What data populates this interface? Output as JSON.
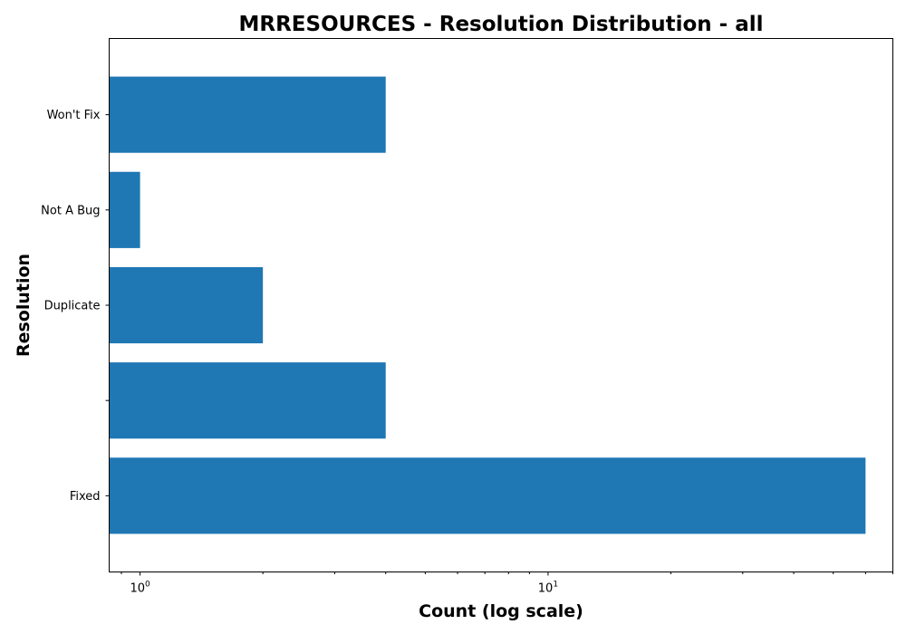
{
  "chart_data": {
    "type": "bar",
    "orientation": "horizontal",
    "title": "MRRESOURCES - Resolution Distribution - all",
    "xlabel": "Count (log scale)",
    "ylabel": "Resolution",
    "x_scale": "log",
    "xlim": [
      0.84,
      70
    ],
    "x_major_ticks": [
      1,
      10
    ],
    "x_major_tick_labels": [
      {
        "base": "10",
        "exp": "0"
      },
      {
        "base": "10",
        "exp": "1"
      }
    ],
    "categories": [
      "Fixed",
      "",
      "Duplicate",
      "Not A Bug",
      "Won't Fix"
    ],
    "values": [
      60,
      4,
      2,
      1,
      4
    ],
    "bar_color": "#1f77b4",
    "grid": false,
    "legend": "none"
  }
}
